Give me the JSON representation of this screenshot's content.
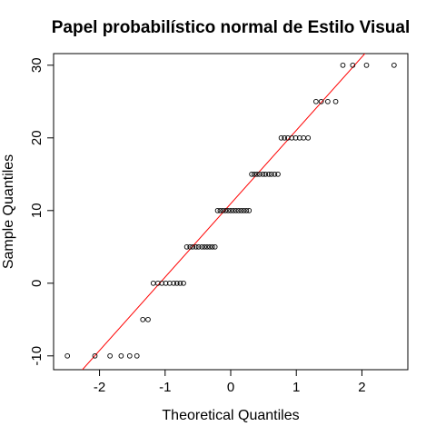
{
  "chart_data": {
    "type": "scatter",
    "subtype": "normal-qq-plot",
    "title": "Papel probabilístico normal de Estilo Visual",
    "xlabel": "Theoretical Quantiles",
    "ylabel": "Sample Quantiles",
    "xlim": [
      -2.7,
      2.7
    ],
    "ylim": [
      -11.9,
      31.6
    ],
    "xticks": [
      "-2",
      "-1",
      "0",
      "1",
      "2"
    ],
    "yticks": [
      "-10",
      "0",
      "10",
      "20",
      "30"
    ],
    "grid": false,
    "legend": "none",
    "point_color": "#000000",
    "reference_line": {
      "color": "#ff0000",
      "intercept": 10.94,
      "slope": 10.1
    },
    "points": [
      [
        -2.49,
        -10
      ],
      [
        -2.07,
        -10
      ],
      [
        -1.84,
        -10
      ],
      [
        -1.67,
        -10
      ],
      [
        -1.54,
        -10
      ],
      [
        -1.43,
        -10
      ],
      [
        -1.34,
        -5
      ],
      [
        -1.26,
        -5
      ],
      [
        -1.18,
        0
      ],
      [
        -1.11,
        0
      ],
      [
        -1.05,
        0
      ],
      [
        -0.99,
        0
      ],
      [
        -0.93,
        0
      ],
      [
        -0.87,
        0
      ],
      [
        -0.82,
        0
      ],
      [
        -0.77,
        0
      ],
      [
        -0.72,
        0
      ],
      [
        -0.67,
        5
      ],
      [
        -0.62,
        5
      ],
      [
        -0.58,
        5
      ],
      [
        -0.53,
        5
      ],
      [
        -0.49,
        5
      ],
      [
        -0.44,
        5
      ],
      [
        -0.4,
        5
      ],
      [
        -0.36,
        5
      ],
      [
        -0.32,
        5
      ],
      [
        -0.28,
        5
      ],
      [
        -0.24,
        5
      ],
      [
        -0.2,
        10
      ],
      [
        -0.16,
        10
      ],
      [
        -0.12,
        10
      ],
      [
        -0.08,
        10
      ],
      [
        -0.04,
        10
      ],
      [
        0.0,
        10
      ],
      [
        0.04,
        10
      ],
      [
        0.08,
        10
      ],
      [
        0.12,
        10
      ],
      [
        0.16,
        10
      ],
      [
        0.2,
        10
      ],
      [
        0.24,
        10
      ],
      [
        0.28,
        10
      ],
      [
        0.32,
        15
      ],
      [
        0.36,
        15
      ],
      [
        0.4,
        15
      ],
      [
        0.44,
        15
      ],
      [
        0.49,
        15
      ],
      [
        0.53,
        15
      ],
      [
        0.58,
        15
      ],
      [
        0.62,
        15
      ],
      [
        0.67,
        15
      ],
      [
        0.72,
        15
      ],
      [
        0.77,
        20
      ],
      [
        0.82,
        20
      ],
      [
        0.87,
        20
      ],
      [
        0.93,
        20
      ],
      [
        0.99,
        20
      ],
      [
        1.05,
        20
      ],
      [
        1.11,
        20
      ],
      [
        1.18,
        20
      ],
      [
        1.3,
        25
      ],
      [
        1.38,
        25
      ],
      [
        1.48,
        25
      ],
      [
        1.6,
        25
      ],
      [
        1.71,
        30
      ],
      [
        1.86,
        30
      ],
      [
        2.07,
        30
      ],
      [
        2.49,
        30
      ]
    ]
  }
}
